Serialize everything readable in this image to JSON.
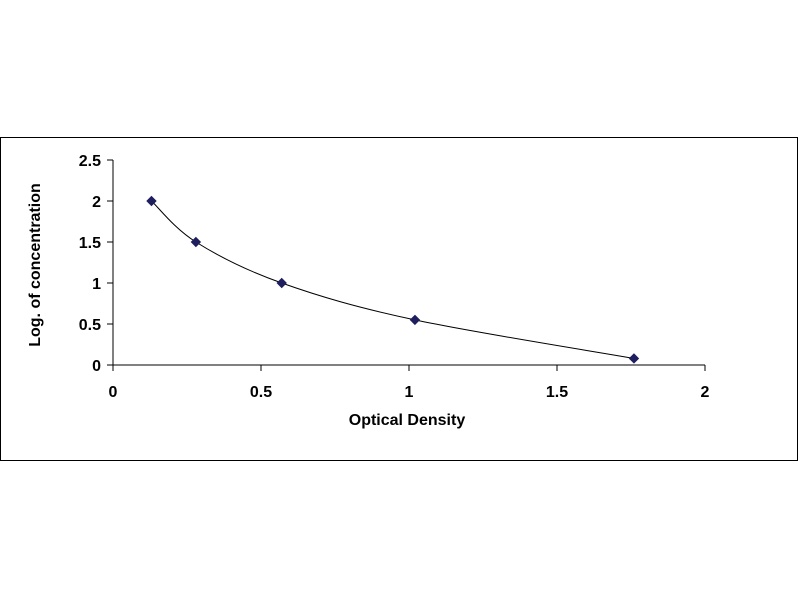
{
  "chart_data": {
    "type": "scatter",
    "title": "",
    "xlabel": "Optical Density",
    "ylabel": "Log. of concentration",
    "xlim": [
      0,
      2
    ],
    "ylim": [
      0,
      2.5
    ],
    "x_ticks": [
      "0",
      "0.5",
      "1",
      "1.5",
      "2"
    ],
    "y_ticks": [
      "0",
      "0.5",
      "1",
      "1.5",
      "2",
      "2.5"
    ],
    "grid": false,
    "legend": "none",
    "series": [
      {
        "x": [
          0.13,
          0.28,
          0.57,
          1.02,
          1.76
        ],
        "y": [
          2.0,
          1.5,
          1.0,
          0.55,
          0.08
        ],
        "marker": "diamond",
        "fit_curve": true,
        "color": "#1f1f5f"
      }
    ]
  }
}
